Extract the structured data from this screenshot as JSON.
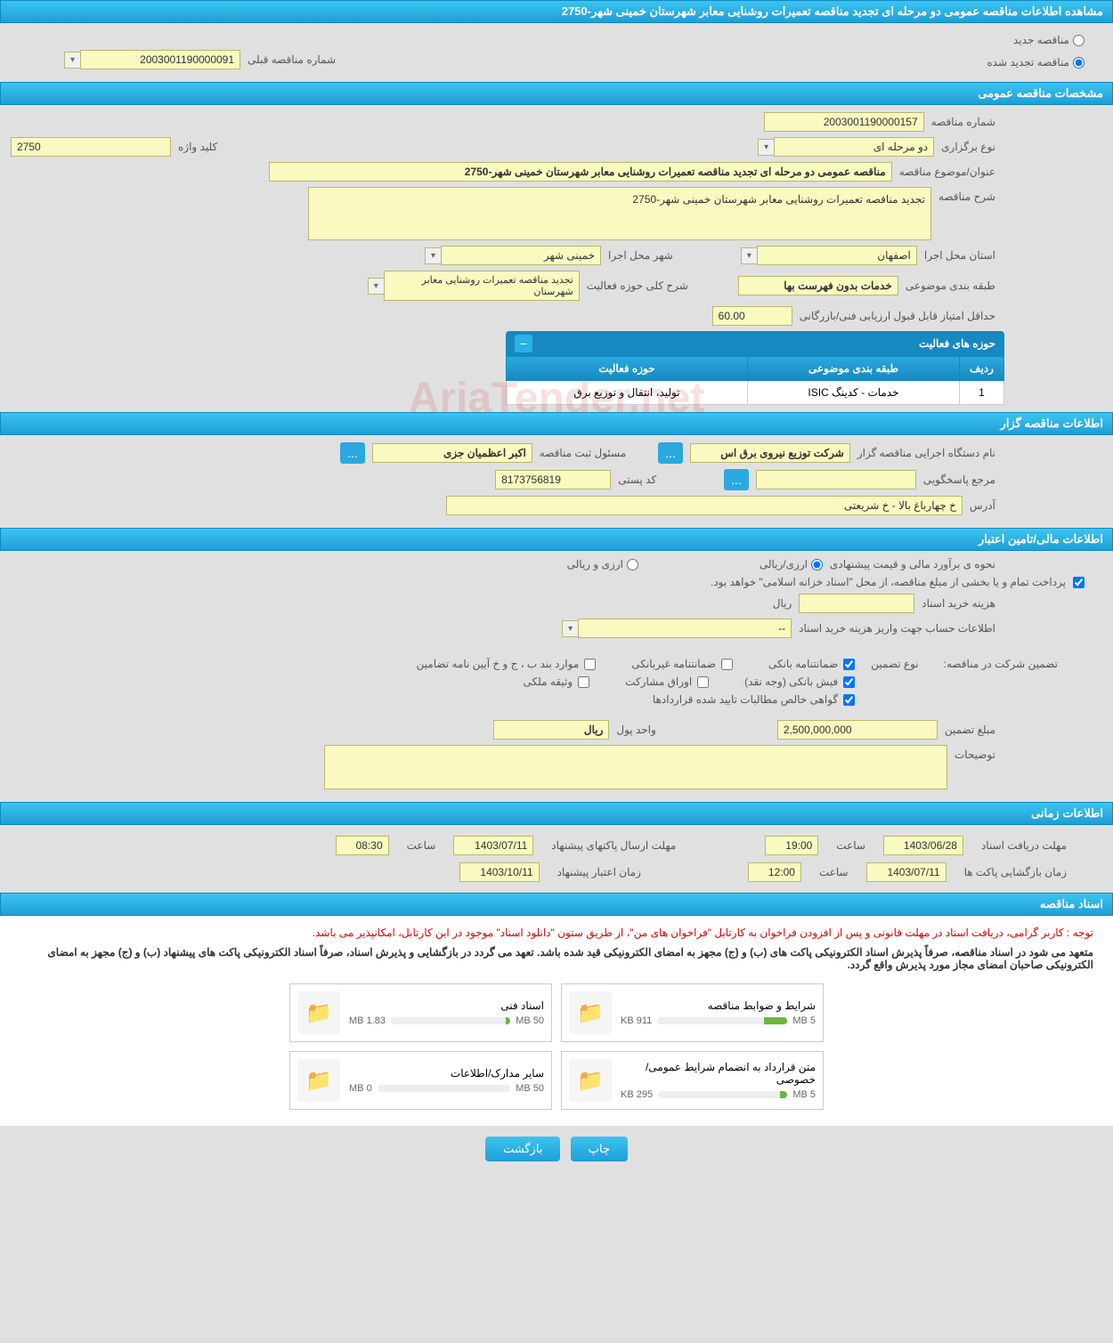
{
  "header": {
    "title": "مشاهده اطلاعات مناقصه عمومی دو مرحله ای تجدید مناقصه تعمیرات روشنایی معابر شهرستان خمینی شهر-2750"
  },
  "top_radio": {
    "new_tender": "مناقصه جدید",
    "renewed_tender": "مناقصه تجدید شده",
    "prev_number_label": "شماره مناقصه قبلی",
    "prev_number": "2003001190000091"
  },
  "sections": {
    "general": "مشخصات مناقصه عمومی",
    "tenderer": "اطلاعات مناقصه گزار",
    "financial": "اطلاعات مالی/تامین اعتبار",
    "timing": "اطلاعات زمانی",
    "documents": "اسناد مناقصه"
  },
  "general": {
    "tender_number_label": "شماره مناقصه",
    "tender_number": "2003001190000157",
    "keyword_label": "کلید واژه",
    "keyword": "2750",
    "holding_type_label": "نوع برگزاری",
    "holding_type": "دو مرحله ای",
    "title_label": "عنوان/موضوع مناقصه",
    "title_value": "مناقصه عمومی دو مرحله ای تجدید مناقصه تعمیرات روشنایی معابر شهرستان خمینی شهر-2750",
    "description_label": "شرح مناقصه",
    "description": "تجدید مناقصه تعمیرات روشنایی معابر شهرستان خمینی شهر-2750",
    "province_label": "استان محل اجرا",
    "province": "اصفهان",
    "city_label": "شهر محل اجرا",
    "city": "خمینی شهر",
    "subject_class_label": "طبقه بندی موضوعی",
    "subject_class": "خدمات بدون فهرست بها",
    "activity_scope_label": "شرح کلی حوزه فعالیت",
    "activity_scope": "تجدید مناقصه تعمیرات روشنایی معابر شهرستان",
    "min_score_label": "حداقل امتیاز قابل قبول ارزیابی فنی/بازرگانی",
    "min_score": "60.00",
    "activity_table": {
      "title": "حوزه های فعالیت",
      "col_row": "ردیف",
      "col_class": "طبقه بندی موضوعی",
      "col_activity": "حوزه فعالیت",
      "row1_num": "1",
      "row1_class": "خدمات - کدینگ ISIC",
      "row1_activity": "تولید، انتقال و توزیع برق"
    }
  },
  "tenderer": {
    "org_label": "نام دستگاه اجرایی مناقصه گزار",
    "org_value": "شرکت توزیع نیروی برق اس",
    "responsible_label": "مسئول ثبت مناقصه",
    "responsible_value": "اکبر اعظمیان جزی",
    "responder_label": "مرجع پاسخگویی",
    "postal_label": "کد پستی",
    "postal_value": "8173756819",
    "address_label": "آدرس",
    "address_value": "خ چهارباغ بالا  - خ شریعتی"
  },
  "financial": {
    "estimate_label": "نحوه ی برآورد مالی و قیمت پیشنهادی",
    "rial_currency": "ارزی/ریالی",
    "foreign_rial": "ارزی و ریالی",
    "treasury_note": "پرداخت تمام و یا بخشی از مبلغ مناقصه، از محل \"اسناد خزانه اسلامی\" خواهد بود.",
    "doc_cost_label": "هزینه خرید اسناد",
    "doc_cost_unit": "ریال",
    "bank_info_label": "اطلاعات حساب جهت واریز هزینه خرید اسناد",
    "bank_info_value": "--",
    "guarantee_label": "تضمین شرکت در مناقصه:",
    "guarantee_type_label": "نوع تضمین",
    "chk_bank_guarantee": "ضمانتنامه بانکی",
    "chk_nonbank_guarantee": "ضمانتنامه غیربانکی",
    "chk_bylaw": "موارد بند ب ، ج و خ آیین نامه تضامین",
    "chk_bank_receipt": "فیش بانکی (وجه نقد)",
    "chk_bonds": "اوراق مشارکت",
    "chk_property": "وثیقه ملکی",
    "chk_receivables": "گواهی خالص مطالبات تایید شده قراردادها",
    "guarantee_amount_label": "مبلغ تضمین",
    "guarantee_amount": "2,500,000,000",
    "currency_unit_label": "واحد پول",
    "currency_unit": "ریال",
    "remarks_label": "توضیحات"
  },
  "timing": {
    "doc_deadline_label": "مهلت دریافت اسناد",
    "doc_deadline_date": "1403/06/28",
    "time_label": "ساعت",
    "doc_deadline_time": "19:00",
    "packet_send_label": "مهلت ارسال پاکتهای پیشنهاد",
    "packet_send_date": "1403/07/11",
    "packet_send_time": "08:30",
    "open_label": "زمان بازگشایی پاکت ها",
    "open_date": "1403/07/11",
    "open_time": "12:00",
    "validity_label": "زمان اعتبار پیشنهاد",
    "validity_date": "1403/10/11"
  },
  "documents": {
    "notice1": "توجه : کاربر گرامی، دریافت اسناد در مهلت قانونی و پس از افزودن فراخوان به کارتابل \"فراخوان های من\"، از طریق ستون \"دانلود اسناد\" موجود در این کارتابل، امکانپذیر می باشد.",
    "notice2": "متعهد می شود در اسناد مناقصه، صرفاً پذیرش اسناد الکترونیکی پاکت های (ب) و (ج) مجهز به امضای الکترونیکی قید شده باشد. تعهد می گردد در بازگشایی و پذیرش اسناد، صرفاً اسناد الکترونیکی پاکت های پیشنهاد (ب) و (ج) مجهز به امضای الکترونیکی صاحبان امضای مجاز مورد پذیرش واقع گردد.",
    "cards": [
      {
        "title": "شرایط و ضوابط مناقصه",
        "size": "911 KB",
        "capacity": "5 MB",
        "progress": 18
      },
      {
        "title": "اسناد فنی",
        "size": "1.83 MB",
        "capacity": "50 MB",
        "progress": 4
      },
      {
        "title": "متن قرارداد به انضمام شرایط عمومی/خصوصی",
        "size": "295 KB",
        "capacity": "5 MB",
        "progress": 6
      },
      {
        "title": "سایر مدارک/اطلاعات",
        "size": "0 MB",
        "capacity": "50 MB",
        "progress": 0
      }
    ]
  },
  "footer": {
    "print": "چاپ",
    "back": "بازگشت"
  },
  "watermark": "AriaTender.net"
}
